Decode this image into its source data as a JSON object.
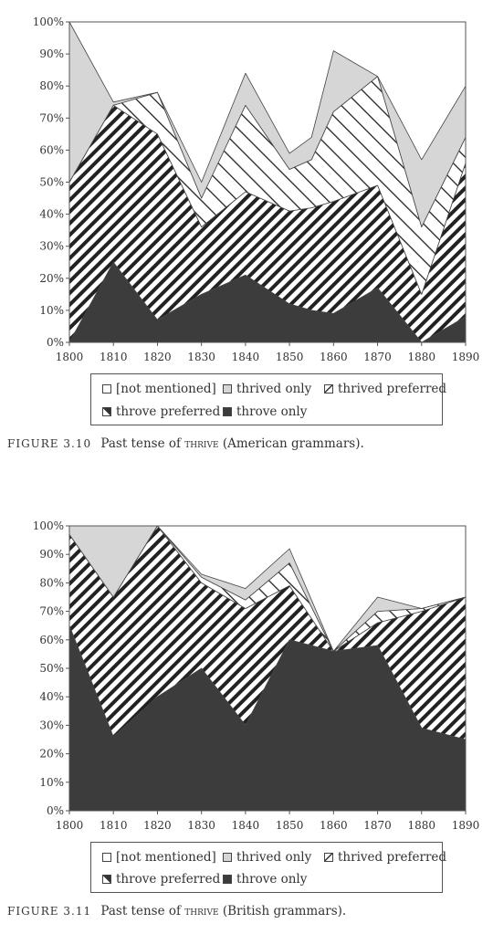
{
  "figures": [
    {
      "caption": {
        "label": "FIGURE 3.10",
        "text_before": "Past tense of ",
        "word": "thrive",
        "text_after": " (American grammars)."
      },
      "legend": [
        {
          "label": "[not mentioned]",
          "swatch": "none"
        },
        {
          "label": "thrived only",
          "swatch": "thrived-only"
        },
        {
          "label": "thrived preferred",
          "swatch": "thrived-preferred"
        },
        {
          "label": "throve preferred",
          "swatch": "throve-preferred"
        },
        {
          "label": "throve only",
          "swatch": "throve-only"
        }
      ]
    },
    {
      "caption": {
        "label": "FIGURE 3.11",
        "text_before": "Past tense of ",
        "word": "thrive",
        "text_after": " (British grammars)."
      },
      "legend": [
        {
          "label": "[not mentioned]",
          "swatch": "none"
        },
        {
          "label": "thrived only",
          "swatch": "thrived-only"
        },
        {
          "label": "thrived preferred",
          "swatch": "thrived-preferred"
        },
        {
          "label": "throve preferred",
          "swatch": "throve-preferred"
        },
        {
          "label": "throve only",
          "swatch": "throve-only"
        }
      ]
    }
  ],
  "colors": {
    "thrived_only": "#d6d6d6",
    "throve_only": "#3c3c3c",
    "hatch": "#222222",
    "frame": "#555555"
  },
  "chart_data": [
    {
      "type": "area",
      "stacked": true,
      "x_ticks": [
        1800,
        1810,
        1820,
        1830,
        1840,
        1850,
        1860,
        1870,
        1880,
        1890
      ],
      "y_ticks": [
        "0%",
        "10%",
        "20%",
        "30%",
        "40%",
        "50%",
        "60%",
        "70%",
        "80%",
        "90%",
        "100%"
      ],
      "xlim": [
        1800,
        1890
      ],
      "ylim": [
        0,
        100
      ],
      "series": [
        {
          "name": "throve only",
          "x": [
            1800,
            1810,
            1820,
            1830,
            1840,
            1850,
            1855,
            1860,
            1870,
            1880,
            1890
          ],
          "values": [
            0,
            25,
            7,
            15,
            21,
            12,
            10,
            9,
            17,
            0,
            8
          ]
        },
        {
          "name": "throve preferred",
          "x": [
            1800,
            1810,
            1820,
            1830,
            1840,
            1850,
            1855,
            1860,
            1870,
            1880,
            1890
          ],
          "values": [
            50,
            49,
            58,
            21,
            26,
            29,
            32,
            35,
            32,
            15,
            48
          ]
        },
        {
          "name": "thrived preferred",
          "x": [
            1800,
            1810,
            1820,
            1830,
            1840,
            1850,
            1855,
            1860,
            1870,
            1880,
            1890
          ],
          "values": [
            0,
            0,
            13,
            9,
            27,
            13,
            15,
            28,
            34,
            21,
            8
          ]
        },
        {
          "name": "thrived only",
          "x": [
            1800,
            1810,
            1820,
            1830,
            1840,
            1850,
            1855,
            1860,
            1870,
            1880,
            1890
          ],
          "values": [
            50,
            1,
            0,
            5,
            10,
            5,
            7,
            19,
            0,
            21,
            16
          ]
        }
      ]
    },
    {
      "type": "area",
      "stacked": true,
      "x_ticks": [
        1800,
        1810,
        1820,
        1830,
        1840,
        1850,
        1860,
        1870,
        1880,
        1890
      ],
      "y_ticks": [
        "0%",
        "10%",
        "20%",
        "30%",
        "40%",
        "50%",
        "60%",
        "70%",
        "80%",
        "90%",
        "100%"
      ],
      "xlim": [
        1800,
        1890
      ],
      "ylim": [
        0,
        100
      ],
      "series": [
        {
          "name": "throve only",
          "x": [
            1800,
            1810,
            1820,
            1830,
            1840,
            1850,
            1860,
            1870,
            1880,
            1890
          ],
          "values": [
            65,
            26,
            40,
            50,
            30,
            60,
            56,
            58,
            29,
            25
          ]
        },
        {
          "name": "throve preferred",
          "x": [
            1800,
            1810,
            1820,
            1830,
            1840,
            1850,
            1860,
            1870,
            1880,
            1890
          ],
          "values": [
            32,
            49,
            60,
            30,
            41,
            19,
            0,
            8,
            41,
            50
          ]
        },
        {
          "name": "thrived preferred",
          "x": [
            1800,
            1810,
            1820,
            1830,
            1840,
            1850,
            1860,
            1870,
            1880,
            1890
          ],
          "values": [
            0,
            0,
            0,
            2,
            3,
            8,
            0,
            4,
            1,
            0
          ]
        },
        {
          "name": "thrived only",
          "x": [
            1800,
            1810,
            1820,
            1830,
            1840,
            1850,
            1860,
            1870,
            1880,
            1890
          ],
          "values": [
            3,
            25,
            0,
            1,
            4,
            5,
            0,
            5,
            0,
            0
          ]
        }
      ]
    }
  ]
}
